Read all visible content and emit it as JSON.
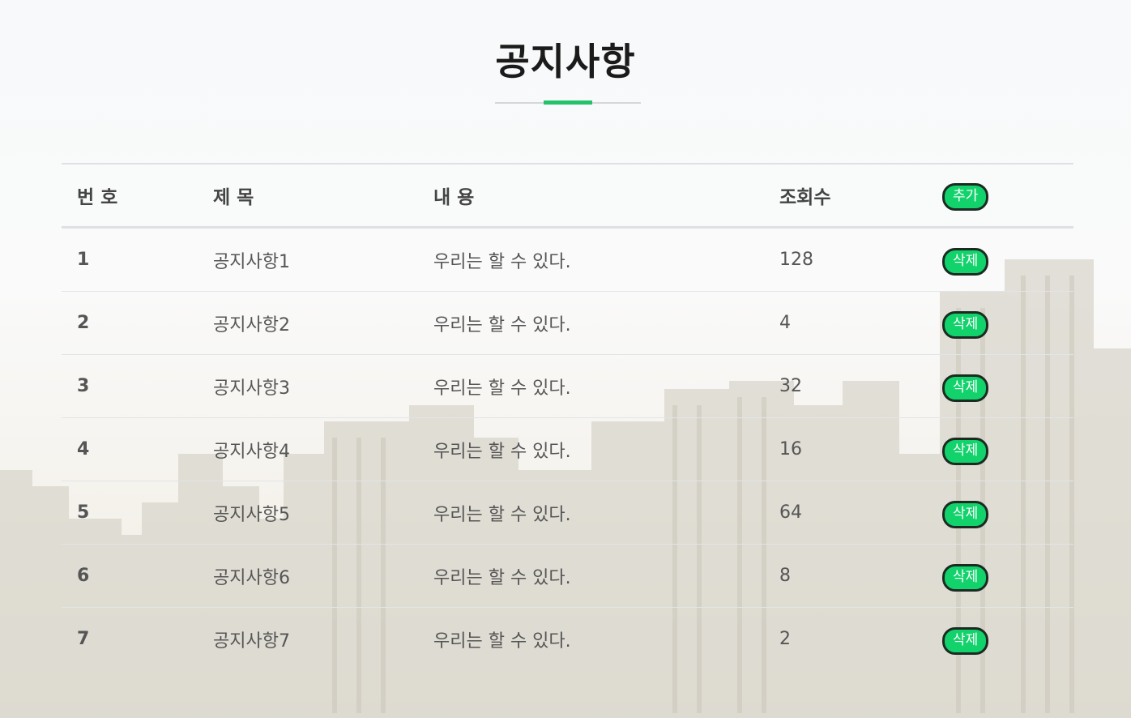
{
  "page": {
    "title": "공지사항"
  },
  "table": {
    "headers": {
      "num": "번 호",
      "title": "제 목",
      "content": "내 용",
      "views": "조회수",
      "add_button": "추가"
    },
    "delete_label": "삭제",
    "rows": [
      {
        "num": "1",
        "title": "공지사항1",
        "content": "우리는 할 수 있다.",
        "views": "128"
      },
      {
        "num": "2",
        "title": "공지사항2",
        "content": "우리는 할 수 있다.",
        "views": "4"
      },
      {
        "num": "3",
        "title": "공지사항3",
        "content": "우리는 할 수 있다.",
        "views": "32"
      },
      {
        "num": "4",
        "title": "공지사항4",
        "content": "우리는 할 수 있다.",
        "views": "16"
      },
      {
        "num": "5",
        "title": "공지사항5",
        "content": "우리는 할 수 있다.",
        "views": "64"
      },
      {
        "num": "6",
        "title": "공지사항6",
        "content": "우리는 할 수 있다.",
        "views": "8"
      },
      {
        "num": "7",
        "title": "공지사항7",
        "content": "우리는 할 수 있다.",
        "views": "2"
      }
    ]
  },
  "colors": {
    "accent": "#22c36a",
    "button": "#12d26b",
    "button_border": "#1c2a22"
  }
}
